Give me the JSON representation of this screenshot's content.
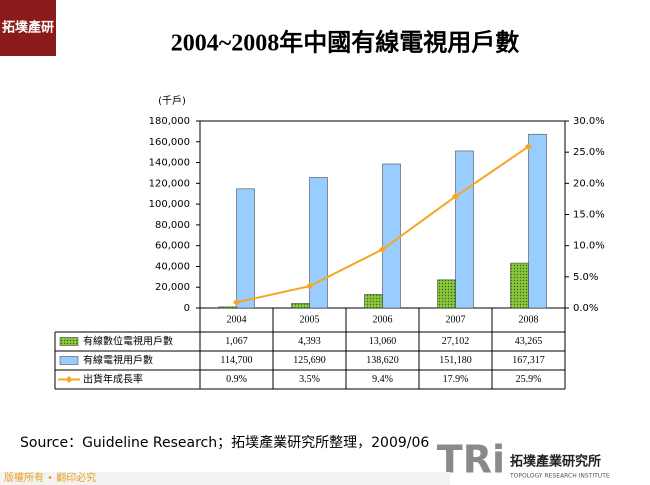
{
  "logo": {
    "mark": "拓墣產研",
    "name": "拓墣產業研究所",
    "english": "TOPOLOGY RESEARCH INSTITUTE",
    "short": "TRi"
  },
  "chart_data": {
    "type": "bar",
    "title": "2004~2008年中國有線電視用戶數",
    "y_axis_label": "(千戶)",
    "categories": [
      "2004",
      "2005",
      "2006",
      "2007",
      "2008"
    ],
    "series": [
      {
        "name": "有線數位電視用戶數",
        "color": "#8cc63f",
        "values": [
          1067,
          4393,
          13060,
          27102,
          43265
        ],
        "value_labels": [
          "1,067",
          "4,393",
          "13,060",
          "27,102",
          "43,265"
        ]
      },
      {
        "name": "有線電視用戶數",
        "color": "#99ccff",
        "values": [
          114700,
          125690,
          138620,
          151180,
          167317
        ],
        "value_labels": [
          "114,700",
          "125,690",
          "138,620",
          "151,180",
          "167,317"
        ]
      },
      {
        "name": "出貨年成長率",
        "type": "line",
        "axis": "y2",
        "color": "#f5a623",
        "values": [
          0.9,
          3.5,
          9.4,
          17.9,
          25.9
        ],
        "value_labels": [
          "0.9%",
          "3.5%",
          "9.4%",
          "17.9%",
          "25.9%"
        ]
      }
    ],
    "ylim": [
      0,
      180000
    ],
    "yticks": [
      0,
      {
        "value": 20000,
        "label": "20,000"
      },
      {
        "value": 40000,
        "label": "40,000"
      },
      {
        "value": 60000,
        "label": "60,000"
      },
      {
        "value": 80000,
        "label": "80,000"
      },
      {
        "value": 100000,
        "label": "100,000"
      },
      {
        "value": 120000,
        "label": "120,000"
      },
      {
        "value": 140000,
        "label": "140,000"
      },
      {
        "value": 160000,
        "label": "160,000"
      },
      {
        "value": 180000,
        "label": "180,000"
      }
    ],
    "y2lim": [
      0,
      30
    ],
    "y2ticks": [
      {
        "value": 0,
        "label": "0.0%"
      },
      {
        "value": 5,
        "label": "5.0%"
      },
      {
        "value": 10,
        "label": "10.0%"
      },
      {
        "value": 15,
        "label": "15.0%"
      },
      {
        "value": 20,
        "label": "20.0%"
      },
      {
        "value": 25,
        "label": "25.0%"
      },
      {
        "value": 30,
        "label": "30.0%"
      }
    ]
  },
  "source": "Source：Guideline Research；拓墣產業研究所整理，2009/06",
  "footer": "版權所有 • 翻印必究"
}
